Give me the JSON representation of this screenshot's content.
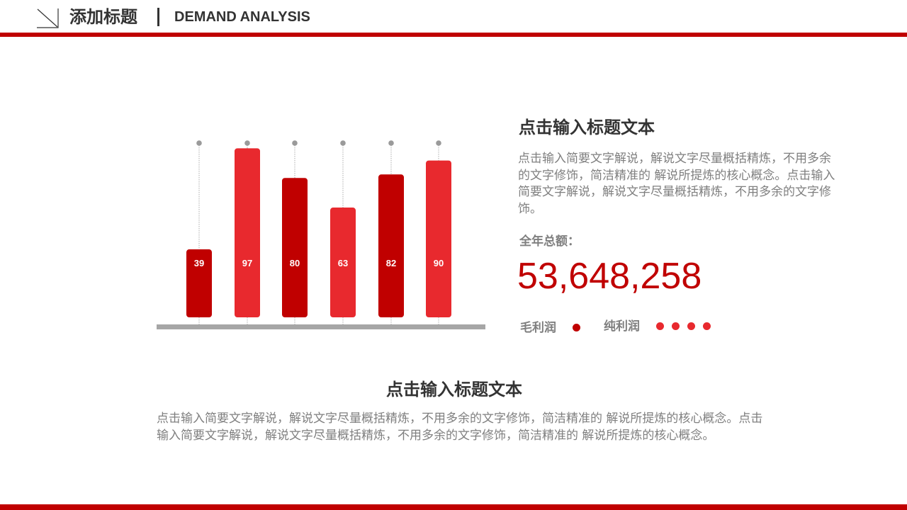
{
  "header": {
    "title": "添加标题",
    "subtitle": "DEMAND ANALYSIS",
    "accent_color": "#c00000"
  },
  "chart_data": {
    "type": "bar",
    "categories": [
      "",
      "",
      "",
      "",
      "",
      ""
    ],
    "values": [
      39,
      97,
      80,
      63,
      82,
      90
    ],
    "data_labels": [
      "39",
      "97",
      "80",
      "63",
      "82",
      "90"
    ],
    "ylim": [
      0,
      100
    ],
    "grid": false,
    "bar_colors": [
      "#c00000",
      "#e8292e",
      "#c00000",
      "#e8292e",
      "#c00000",
      "#e8292e"
    ],
    "axis_color": "#a6a6a6"
  },
  "right_panel": {
    "title": "点击输入标题文本",
    "body": "点击输入简要文字解说，解说文字尽量概括精炼，不用多余的文字修饰，简洁精准的 解说所提炼的核心概念。点击输入简要文字解说，解说文字尽量概括精炼，不用多余的文字修饰。",
    "total_label": "全年总额：",
    "total_value": "53,648,258",
    "legend_gross": "毛利润",
    "legend_net": "纯利润"
  },
  "bottom_panel": {
    "title": "点击输入标题文本",
    "body": "点击输入简要文字解说，解说文字尽量概括精炼，不用多余的文字修饰，简洁精准的 解说所提炼的核心概念。点击输入简要文字解说，解说文字尽量概括精炼，不用多余的文字修饰，简洁精准的 解说所提炼的核心概念。"
  }
}
